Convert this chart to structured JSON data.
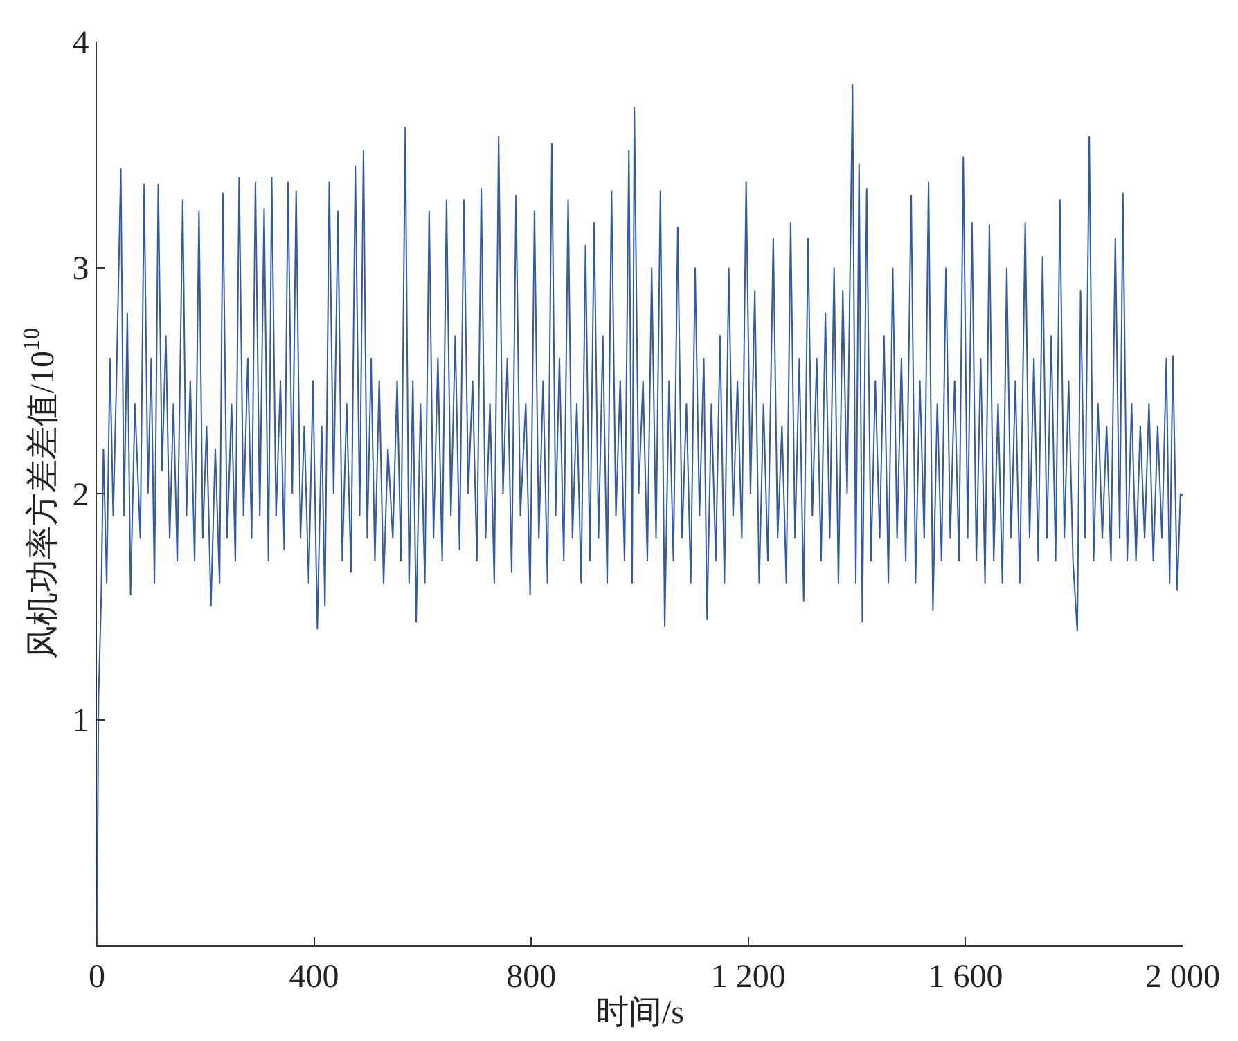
{
  "chart_data": {
    "type": "line",
    "xlabel": "时间/s",
    "ylabel": "风机功率方差差值/10$^{10}$",
    "xlim": [
      0,
      2000
    ],
    "ylim": [
      0,
      4
    ],
    "xticks": [
      0,
      400,
      800,
      {
        "value": 1200,
        "label": "1 200"
      },
      {
        "value": 1600,
        "label": "1 600"
      },
      {
        "value": 2000,
        "label": "2 000"
      }
    ],
    "yticks": [
      {
        "value": 0,
        "label": null
      },
      1,
      2,
      3,
      4
    ],
    "marker": "none",
    "line_style": "solid",
    "series": [
      {
        "color": "#2f5aa8",
        "x": [
          0,
          3,
          8,
          12,
          18,
          24,
          30,
          36,
          44,
          50,
          56,
          62,
          70,
          80,
          87,
          94,
          100,
          106,
          113,
          120,
          127,
          134,
          141,
          148,
          158,
          165,
          172,
          180,
          188,
          195,
          202,
          210,
          218,
          226,
          232,
          240,
          248,
          255,
          262,
          270,
          278,
          285,
          292,
          300,
          308,
          316,
          322,
          330,
          338,
          345,
          352,
          360,
          367,
          375,
          382,
          390,
          398,
          406,
          414,
          420,
          428,
          436,
          444,
          452,
          460,
          468,
          476,
          484,
          491,
          498,
          505,
          512,
          520,
          528,
          536,
          545,
          553,
          560,
          568,
          575,
          582,
          588,
          596,
          604,
          612,
          620,
          628,
          636,
          644,
          652,
          660,
          668,
          676,
          684,
          692,
          700,
          708,
          716,
          724,
          732,
          740,
          748,
          756,
          764,
          772,
          780,
          790,
          798,
          806,
          814,
          822,
          830,
          838,
          845,
          852,
          860,
          868,
          876,
          884,
          892,
          900,
          908,
          916,
          924,
          932,
          940,
          948,
          956,
          964,
          972,
          980,
          986,
          990,
          998,
          1006,
          1014,
          1022,
          1030,
          1038,
          1046,
          1054,
          1062,
          1070,
          1078,
          1086,
          1094,
          1102,
          1110,
          1118,
          1124,
          1132,
          1140,
          1148,
          1156,
          1164,
          1172,
          1180,
          1188,
          1196,
          1204,
          1212,
          1220,
          1228,
          1236,
          1246,
          1254,
          1262,
          1270,
          1278,
          1286,
          1294,
          1302,
          1310,
          1318,
          1326,
          1334,
          1342,
          1350,
          1358,
          1366,
          1374,
          1382,
          1392,
          1398,
          1404,
          1410,
          1418,
          1426,
          1434,
          1442,
          1450,
          1458,
          1466,
          1474,
          1482,
          1490,
          1500,
          1508,
          1516,
          1524,
          1532,
          1540,
          1548,
          1556,
          1564,
          1572,
          1580,
          1588,
          1596,
          1604,
          1612,
          1620,
          1628,
          1636,
          1644,
          1652,
          1660,
          1668,
          1676,
          1684,
          1692,
          1700,
          1710,
          1718,
          1726,
          1734,
          1742,
          1750,
          1758,
          1766,
          1774,
          1782,
          1790,
          1798,
          1806,
          1812,
          1820,
          1828,
          1836,
          1844,
          1852,
          1860,
          1868,
          1876,
          1884,
          1890,
          1898,
          1906,
          1914,
          1922,
          1930,
          1938,
          1946,
          1954,
          1962,
          1970,
          1976,
          1982,
          1990,
          1996,
          2000
        ],
        "values": [
          0,
          1.1,
          1.55,
          2.2,
          1.6,
          2.6,
          1.9,
          2.5,
          3.44,
          1.9,
          2.8,
          1.55,
          2.4,
          1.8,
          3.37,
          2.0,
          2.6,
          1.6,
          3.37,
          2.1,
          2.7,
          1.8,
          2.4,
          1.7,
          3.3,
          1.9,
          2.5,
          1.7,
          3.25,
          1.8,
          2.3,
          1.5,
          2.2,
          1.6,
          3.33,
          1.8,
          2.4,
          1.7,
          3.4,
          1.9,
          2.6,
          1.8,
          3.38,
          1.9,
          3.26,
          1.7,
          3.4,
          1.9,
          2.5,
          1.75,
          3.38,
          2.0,
          3.34,
          1.8,
          2.3,
          1.6,
          2.5,
          1.4,
          2.3,
          1.5,
          3.38,
          2.0,
          3.25,
          1.7,
          2.4,
          1.65,
          3.45,
          1.9,
          3.52,
          1.8,
          2.6,
          1.7,
          2.5,
          1.6,
          2.2,
          1.8,
          2.5,
          1.7,
          3.62,
          1.6,
          2.5,
          1.43,
          2.4,
          1.6,
          3.25,
          1.8,
          2.6,
          1.7,
          3.3,
          1.9,
          2.7,
          1.75,
          3.3,
          2.0,
          2.5,
          1.7,
          3.35,
          1.8,
          2.4,
          1.6,
          3.58,
          2.0,
          2.6,
          1.65,
          3.32,
          1.9,
          2.4,
          1.55,
          3.25,
          1.8,
          2.5,
          1.6,
          3.55,
          1.9,
          2.6,
          1.7,
          3.3,
          1.8,
          2.4,
          1.6,
          3.1,
          1.7,
          3.2,
          1.8,
          2.7,
          1.6,
          3.34,
          1.9,
          2.5,
          1.7,
          3.52,
          1.6,
          3.71,
          2.0,
          2.5,
          1.7,
          3.0,
          1.8,
          3.34,
          1.41,
          2.5,
          1.7,
          3.18,
          1.8,
          2.4,
          1.6,
          3.0,
          1.9,
          2.6,
          1.44,
          2.4,
          1.7,
          2.7,
          1.6,
          3.0,
          1.9,
          2.5,
          1.8,
          3.38,
          2.0,
          2.9,
          1.6,
          2.4,
          1.7,
          3.13,
          1.8,
          2.3,
          1.6,
          3.2,
          1.8,
          2.6,
          1.52,
          3.13,
          1.9,
          2.6,
          1.7,
          2.8,
          1.8,
          3.0,
          1.6,
          2.9,
          2.0,
          3.81,
          1.6,
          3.46,
          1.43,
          3.35,
          1.7,
          2.5,
          1.8,
          2.7,
          1.6,
          3.0,
          1.8,
          2.6,
          1.7,
          3.32,
          1.6,
          2.5,
          1.8,
          3.38,
          1.48,
          2.4,
          1.7,
          3.0,
          1.8,
          2.5,
          1.7,
          3.49,
          1.8,
          3.2,
          1.7,
          2.6,
          1.6,
          3.19,
          1.7,
          2.4,
          1.6,
          3.0,
          1.8,
          2.5,
          1.6,
          3.2,
          1.8,
          2.6,
          1.7,
          3.05,
          1.8,
          2.7,
          1.7,
          3.3,
          1.8,
          2.5,
          1.7,
          1.39,
          2.9,
          1.8,
          3.58,
          1.7,
          2.4,
          1.8,
          2.3,
          1.7,
          3.13,
          1.8,
          3.33,
          1.7,
          2.4,
          1.7,
          2.3,
          1.8,
          2.4,
          1.7,
          2.3,
          1.8,
          2.6,
          1.6,
          2.61,
          1.57,
          2.0,
          1.99
        ]
      }
    ]
  }
}
